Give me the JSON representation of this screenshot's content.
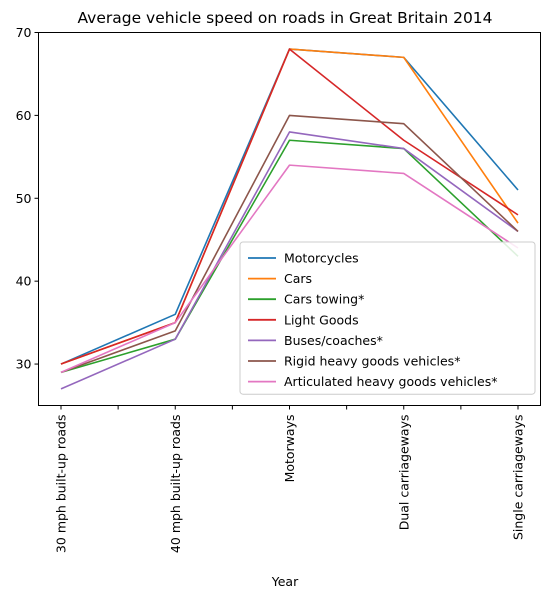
{
  "chart_data": {
    "type": "line",
    "title": "Average vehicle speed on roads in Great Britain 2014",
    "xlabel": "Year",
    "ylabel": "",
    "categories": [
      "30 mph built-up roads",
      "40 mph built-up roads",
      "Motorways",
      "Dual carriageways",
      "Single carriageways"
    ],
    "ylim": [
      25,
      70
    ],
    "yticks": [
      30,
      40,
      50,
      60,
      70
    ],
    "grid": false,
    "legend_position": "lower-right",
    "series": [
      {
        "name": "Motorcycles",
        "color": "#1f77b4",
        "values": [
          30,
          36,
          68,
          67,
          51
        ]
      },
      {
        "name": "Cars",
        "color": "#ff7f0e",
        "values": [
          30,
          35,
          68,
          67,
          47
        ]
      },
      {
        "name": "Cars towing*",
        "color": "#2ca02c",
        "values": [
          29,
          33,
          57,
          56,
          43
        ]
      },
      {
        "name": "Light Goods",
        "color": "#d62728",
        "values": [
          30,
          35,
          68,
          57,
          48
        ]
      },
      {
        "name": "Buses/coaches*",
        "color": "#9467bd",
        "values": [
          27,
          33,
          58,
          56,
          46
        ]
      },
      {
        "name": "Rigid heavy goods vehicles*",
        "color": "#8c564b",
        "values": [
          29,
          34,
          60,
          59,
          46
        ]
      },
      {
        "name": "Articulated heavy goods vehicles*",
        "color": "#e377c2",
        "values": [
          29,
          35,
          54,
          53,
          44
        ]
      }
    ]
  }
}
